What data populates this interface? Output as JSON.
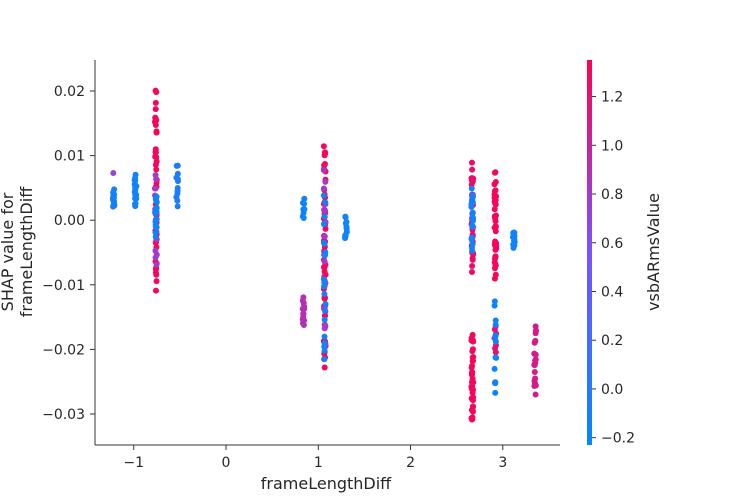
{
  "chart_data": {
    "type": "scatter",
    "title": "",
    "xlabel": "frameLengthDiff",
    "ylabel": "SHAP value for\nframeLengthDiff",
    "xlim": [
      -1.42,
      3.62
    ],
    "ylim": [
      -0.0348,
      0.0248
    ],
    "xticks": [
      -1,
      0,
      1,
      2,
      3
    ],
    "xtick_labels": [
      "−1",
      "0",
      "1",
      "2",
      "3"
    ],
    "yticks": [
      0.02,
      0.01,
      0.0,
      -0.01,
      -0.02,
      -0.03
    ],
    "ytick_labels": [
      "0.02",
      "0.01",
      "0.00",
      "−0.01",
      "−0.02",
      "−0.03"
    ],
    "grid": false,
    "colorbar": {
      "label": "vsbARmsValue",
      "range": [
        -0.23,
        1.35
      ],
      "ticks": [
        1.2,
        1.0,
        0.8,
        0.6,
        0.4,
        0.2,
        0.0,
        -0.2
      ],
      "tick_labels": [
        "1.2",
        "1.0",
        "0.8",
        "0.6",
        "0.4",
        "0.2",
        "0.0",
        "−0.2"
      ],
      "colors": {
        "low": "#008afb",
        "mid": "#7c52ff",
        "high": "#ff0052"
      }
    },
    "point_groups": [
      {
        "x": -1.22,
        "y_range": [
          0.0018,
          0.0048
        ],
        "color_value": -0.1,
        "n": 14
      },
      {
        "x": -1.22,
        "y_range": [
          0.0072,
          0.0074
        ],
        "color_value": 0.7,
        "n": 1
      },
      {
        "x": -0.98,
        "y_range": [
          0.0018,
          0.0072
        ],
        "color_value": -0.15,
        "n": 20
      },
      {
        "x": -0.76,
        "y_range": [
          -0.0122,
          0.0222
        ],
        "color_value": 1.3,
        "n": 50
      },
      {
        "x": -0.76,
        "y_range": [
          -0.008,
          0.008
        ],
        "color_value": 0.8,
        "n": 16
      },
      {
        "x": -0.76,
        "y_range": [
          -0.003,
          0.004
        ],
        "color_value": -0.15,
        "n": 14
      },
      {
        "x": -0.53,
        "y_range": [
          0.0018,
          0.0092
        ],
        "color_value": -0.05,
        "n": 12
      },
      {
        "x": 0.84,
        "y_range": [
          -0.0168,
          -0.0118
        ],
        "color_value": 0.9,
        "n": 14
      },
      {
        "x": 0.84,
        "y_range": [
          0.0,
          0.0035
        ],
        "color_value": -0.15,
        "n": 8
      },
      {
        "x": 1.07,
        "y_range": [
          -0.0252,
          0.0142
        ],
        "color_value": 1.3,
        "n": 60
      },
      {
        "x": 1.07,
        "y_range": [
          -0.022,
          0.012
        ],
        "color_value": 0.8,
        "n": 18
      },
      {
        "x": 1.07,
        "y_range": [
          -0.025,
          0.006
        ],
        "color_value": -0.1,
        "n": 22
      },
      {
        "x": 1.3,
        "y_range": [
          -0.0033,
          0.0008
        ],
        "color_value": -0.15,
        "n": 12
      },
      {
        "x": 2.67,
        "y_range": [
          -0.0322,
          -0.0175
        ],
        "color_value": 1.3,
        "n": 40
      },
      {
        "x": 2.67,
        "y_range": [
          -0.009,
          0.0095
        ],
        "color_value": 1.25,
        "n": 36
      },
      {
        "x": 2.67,
        "y_range": [
          -0.006,
          0.006
        ],
        "color_value": -0.1,
        "n": 20
      },
      {
        "x": 2.92,
        "y_range": [
          -0.0095,
          0.0082
        ],
        "color_value": 1.3,
        "n": 40
      },
      {
        "x": 2.92,
        "y_range": [
          -0.0205,
          -0.016
        ],
        "color_value": 1.2,
        "n": 8
      },
      {
        "x": 2.92,
        "y_range": [
          -0.029,
          -0.011
        ],
        "color_value": -0.15,
        "n": 14
      },
      {
        "x": 3.12,
        "y_range": [
          -0.0045,
          -0.0015
        ],
        "color_value": -0.15,
        "n": 14
      },
      {
        "x": 3.35,
        "y_range": [
          -0.0272,
          -0.016
        ],
        "color_value": 1.1,
        "n": 20
      }
    ]
  }
}
